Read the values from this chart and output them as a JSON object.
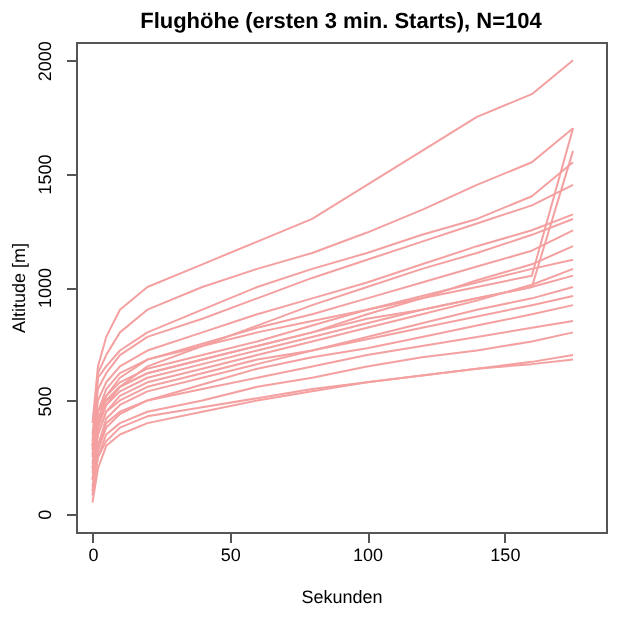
{
  "chart_data": {
    "type": "line",
    "title": "Flughöhe (ersten 3 min. Starts), N=104",
    "xlabel": "Sekunden",
    "ylabel": "Altitude [m]",
    "x": [
      0,
      2,
      5,
      10,
      20,
      40,
      60,
      80,
      100,
      120,
      140,
      160,
      175
    ],
    "series": [
      {
        "color": "#f4a0a0",
        "values": [
          50,
          200,
          300,
          350,
          400,
          450,
          500,
          540,
          580,
          610,
          640,
          670,
          700
        ]
      },
      {
        "color": "#f4a0a0",
        "values": [
          100,
          250,
          350,
          400,
          450,
          500,
          560,
          600,
          650,
          690,
          720,
          760,
          800
        ]
      },
      {
        "color": "#f4a0a0",
        "values": [
          150,
          300,
          400,
          450,
          500,
          550,
          600,
          650,
          700,
          740,
          780,
          820,
          850
        ]
      },
      {
        "color": "#f4a0a0",
        "values": [
          80,
          280,
          380,
          440,
          500,
          570,
          640,
          690,
          730,
          780,
          830,
          880,
          920
        ]
      },
      {
        "color": "#f4a0a0",
        "values": [
          200,
          350,
          450,
          500,
          560,
          620,
          680,
          720,
          770,
          820,
          870,
          920,
          960
        ]
      },
      {
        "color": "#f4a0a0",
        "values": [
          120,
          300,
          420,
          480,
          540,
          600,
          660,
          720,
          780,
          840,
          900,
          950,
          1000
        ]
      },
      {
        "color": "#f4a0a0",
        "values": [
          250,
          400,
          480,
          540,
          600,
          660,
          720,
          780,
          840,
          900,
          950,
          1000,
          1050
        ]
      },
      {
        "color": "#f4a0a0",
        "values": [
          180,
          350,
          450,
          520,
          580,
          640,
          700,
          760,
          820,
          880,
          940,
          1010,
          1080
        ]
      },
      {
        "color": "#f4a0a0",
        "values": [
          300,
          450,
          520,
          580,
          640,
          700,
          760,
          830,
          900,
          960,
          1020,
          1080,
          1120
        ]
      },
      {
        "color": "#f4a0a0",
        "values": [
          220,
          420,
          500,
          560,
          620,
          680,
          740,
          800,
          880,
          950,
          1030,
          1100,
          1180
        ]
      },
      {
        "color": "#f4a0a0",
        "values": [
          260,
          450,
          550,
          620,
          680,
          750,
          820,
          880,
          950,
          1020,
          1090,
          1160,
          1250
        ]
      },
      {
        "color": "#f4a0a0",
        "values": [
          300,
          500,
          580,
          650,
          720,
          800,
          880,
          950,
          1020,
          1100,
          1180,
          1250,
          1320
        ]
      },
      {
        "color": "#f4a0a0",
        "values": [
          150,
          380,
          480,
          560,
          650,
          740,
          830,
          920,
          1000,
          1080,
          1150,
          1230,
          1300
        ]
      },
      {
        "color": "#f4a0a0",
        "values": [
          350,
          550,
          620,
          700,
          780,
          860,
          950,
          1040,
          1120,
          1200,
          1280,
          1360,
          1450
        ]
      },
      {
        "color": "#f4a0a0",
        "values": [
          280,
          600,
          650,
          720,
          800,
          900,
          1000,
          1080,
          1150,
          1230,
          1300,
          1400,
          1550
        ]
      },
      {
        "color": "#f4a0a0",
        "values": [
          320,
          620,
          700,
          800,
          900,
          1000,
          1080,
          1150,
          1240,
          1340,
          1450,
          1550,
          1700
        ]
      },
      {
        "color": "#f4a0a0",
        "values": [
          400,
          650,
          780,
          900,
          1000,
          1100,
          1200,
          1300,
          1450,
          1600,
          1750,
          1850,
          2000
        ]
      },
      {
        "color": "#f4a0a0",
        "values": [
          200,
          400,
          520,
          600,
          680,
          740,
          800,
          850,
          900,
          950,
          1000,
          1050,
          1700
        ]
      },
      {
        "color": "#f4a0a0",
        "values": [
          100,
          250,
          320,
          380,
          430,
          470,
          510,
          550,
          580,
          610,
          640,
          660,
          680
        ]
      },
      {
        "color": "#f4a0a0",
        "values": [
          300,
          450,
          500,
          560,
          620,
          680,
          740,
          800,
          860,
          900,
          950,
          1000,
          1600
        ]
      }
    ],
    "xlim": [
      -6,
      187
    ],
    "xticks": [
      0,
      50,
      100,
      150
    ],
    "ylim": [
      -80,
      2080
    ],
    "yticks": [
      0,
      500,
      1000,
      1500,
      2000
    ],
    "grid": false,
    "legend": false,
    "marker": "none",
    "line_style": "solid"
  }
}
